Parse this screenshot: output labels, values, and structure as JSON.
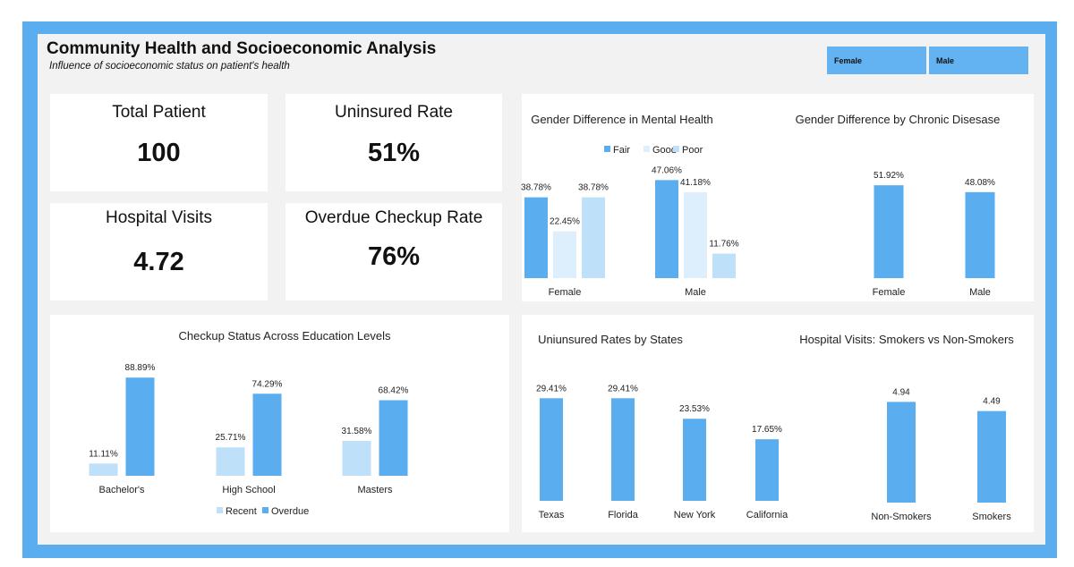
{
  "header": {
    "title": "Community Health and Socioeconomic Analysis",
    "subtitle": "Influence of socioeconomic status on patient's health"
  },
  "slicer": {
    "items": [
      "Female",
      "Male"
    ]
  },
  "kpis": {
    "total_patient": {
      "label": "Total Patient",
      "value": "100"
    },
    "uninsured_rate": {
      "label": "Uninsured Rate",
      "value": "51%"
    },
    "hospital_visits": {
      "label": "Hospital Visits",
      "value": "4.72"
    },
    "overdue_checkup_rate": {
      "label": "Overdue Checkup Rate",
      "value": "76%"
    }
  },
  "colors": {
    "dark": "#5aaef0",
    "light": "#bfe0f9",
    "pale": "#ddeefc",
    "frame": "#5aaef0"
  },
  "chart_data": [
    {
      "id": "mental",
      "type": "bar",
      "title": "Gender Difference in Mental Health",
      "categories": [
        "Female",
        "Male"
      ],
      "series": [
        {
          "name": "Fair",
          "values": [
            38.78,
            47.06
          ],
          "labels": [
            "38.78%",
            "47.06%"
          ]
        },
        {
          "name": "Good",
          "values": [
            22.45,
            41.18
          ],
          "labels": [
            "22.45%",
            "41.18%"
          ]
        },
        {
          "name": "Poor",
          "values": [
            38.78,
            11.76
          ],
          "labels": [
            "38.78%",
            "11.76%"
          ]
        }
      ],
      "legend": "top"
    },
    {
      "id": "chronic",
      "type": "bar",
      "title": "Gender Difference by Chronic Disesase",
      "categories": [
        "Female",
        "Male"
      ],
      "series": [
        {
          "name": "Chronic Disease",
          "values": [
            51.92,
            48.08
          ],
          "labels": [
            "51.92%",
            "48.08%"
          ]
        }
      ]
    },
    {
      "id": "education",
      "type": "bar",
      "title": "Checkup Status Across Education Levels",
      "categories": [
        "Bachelor's",
        "High School",
        "Masters"
      ],
      "series": [
        {
          "name": "Recent",
          "values": [
            11.11,
            25.71,
            31.58
          ],
          "labels": [
            "11.11%",
            "25.71%",
            "31.58%"
          ]
        },
        {
          "name": "Overdue",
          "values": [
            88.89,
            74.29,
            68.42
          ],
          "labels": [
            "88.89%",
            "74.29%",
            "68.42%"
          ]
        }
      ],
      "legend": "bottom"
    },
    {
      "id": "states",
      "type": "bar",
      "title": "Uniunsured Rates by States",
      "categories": [
        "Texas",
        "Florida",
        "New York",
        "California"
      ],
      "series": [
        {
          "name": "Uninsured Rate",
          "values": [
            29.41,
            29.41,
            23.53,
            17.65
          ],
          "labels": [
            "29.41%",
            "29.41%",
            "23.53%",
            "17.65%"
          ]
        }
      ]
    },
    {
      "id": "smokers",
      "type": "bar",
      "title": "Hospital Visits: Smokers vs Non-Smokers",
      "categories": [
        "Non-Smokers",
        "Smokers"
      ],
      "series": [
        {
          "name": "Hospital Visits",
          "values": [
            4.94,
            4.49
          ],
          "labels": [
            "4.94",
            "4.49"
          ]
        }
      ]
    }
  ]
}
